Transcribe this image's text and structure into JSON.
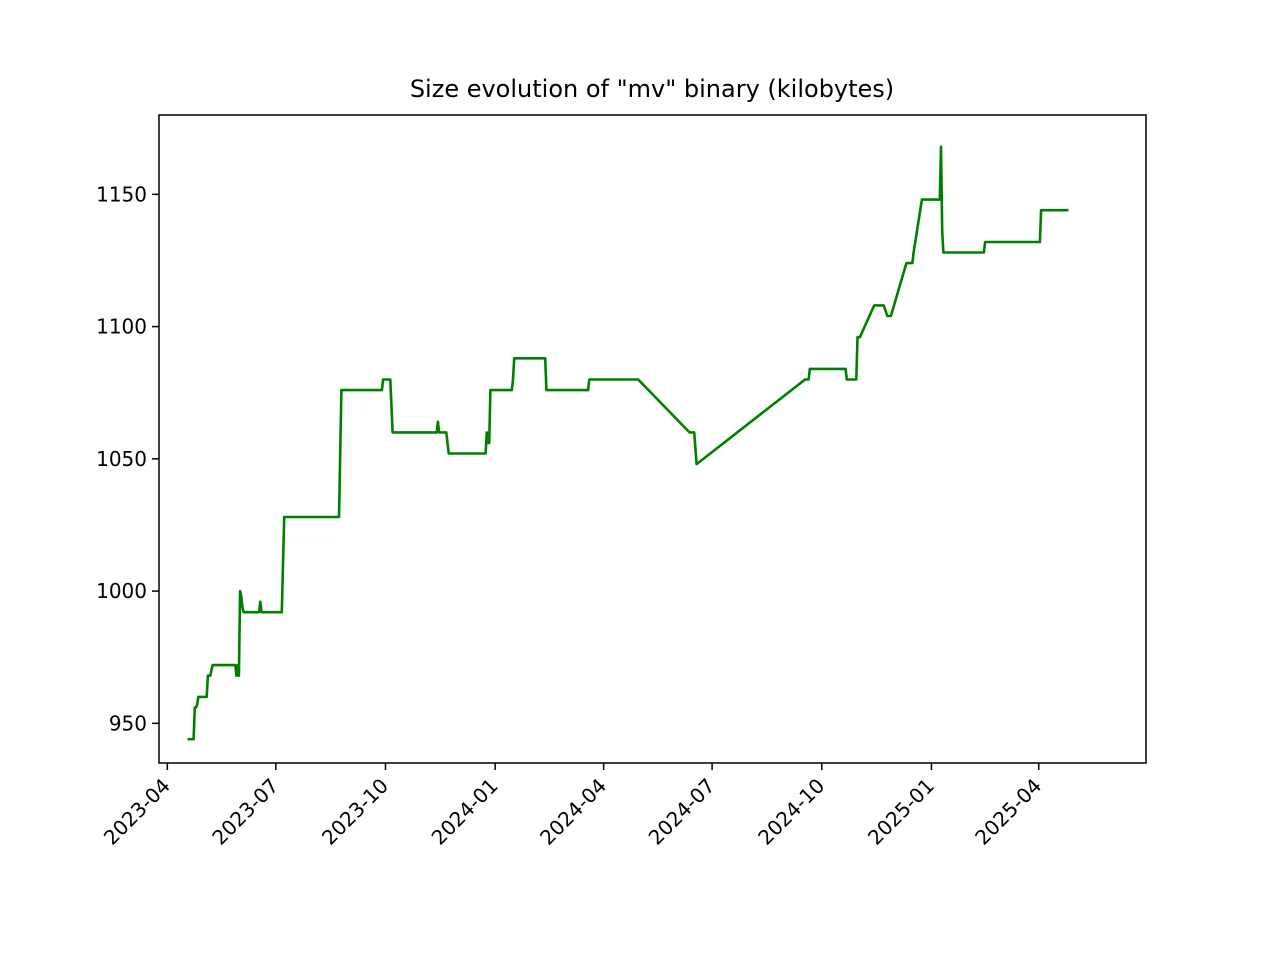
{
  "chart_data": {
    "type": "line",
    "title": "Size evolution of \"mv\" binary (kilobytes)",
    "xlabel": "",
    "ylabel": "",
    "x_axis": "date",
    "xlim": [
      "2023-03-25",
      "2025-06-30"
    ],
    "ylim": [
      935,
      1180
    ],
    "grid": false,
    "legend": "none",
    "line_color": "#008000",
    "xticks": [
      "2023-04-01",
      "2023-07-01",
      "2023-10-01",
      "2024-01-01",
      "2024-04-01",
      "2024-07-01",
      "2024-10-01",
      "2025-01-01",
      "2025-04-01"
    ],
    "xtick_labels": [
      "2023-04",
      "2023-07",
      "2023-10",
      "2024-01",
      "2024-04",
      "2024-07",
      "2024-10",
      "2025-01",
      "2025-04"
    ],
    "yticks": [
      950,
      1000,
      1050,
      1100,
      1150
    ],
    "ytick_labels": [
      "950",
      "1000",
      "1050",
      "1100",
      "1150"
    ],
    "series": [
      {
        "color": "#008000",
        "x": [
          "2023-04-18",
          "2023-04-23",
          "2023-04-24",
          "2023-04-25",
          "2023-04-26",
          "2023-04-27",
          "2023-04-28",
          "2023-05-01",
          "2023-05-04",
          "2023-05-05",
          "2023-05-06",
          "2023-05-07",
          "2023-05-08",
          "2023-05-09",
          "2023-05-10",
          "2023-05-11",
          "2023-05-12",
          "2023-05-28",
          "2023-05-29",
          "2023-05-30",
          "2023-05-31",
          "2023-06-01",
          "2023-06-02",
          "2023-06-03",
          "2023-06-04",
          "2023-06-06",
          "2023-06-17",
          "2023-06-18",
          "2023-06-19",
          "2023-07-06",
          "2023-07-08",
          "2023-08-23",
          "2023-08-25",
          "2023-09-28",
          "2023-09-29",
          "2023-10-05",
          "2023-10-07",
          "2023-11-13",
          "2023-11-14",
          "2023-11-15",
          "2023-11-21",
          "2023-11-23",
          "2023-12-24",
          "2023-12-25",
          "2023-12-26",
          "2023-12-27",
          "2023-12-28",
          "2024-01-15",
          "2024-01-16",
          "2024-01-17",
          "2024-01-18",
          "2024-02-12",
          "2024-02-13",
          "2024-03-19",
          "2024-03-20",
          "2024-04-30",
          "2024-06-12",
          "2024-06-16",
          "2024-06-18",
          "2024-09-17",
          "2024-09-20",
          "2024-09-21",
          "2024-10-21",
          "2024-10-22",
          "2024-10-30",
          "2024-10-31",
          "2024-11-02",
          "2024-11-14",
          "2024-11-22",
          "2024-11-25",
          "2024-11-28",
          "2024-12-11",
          "2024-12-16",
          "2024-12-17",
          "2024-12-24",
          "2025-01-08",
          "2025-01-09",
          "2025-01-10",
          "2025-01-11",
          "2025-01-12",
          "2025-02-14",
          "2025-02-15",
          "2025-04-02",
          "2025-04-03",
          "2025-04-26"
        ],
        "y": [
          944,
          944,
          956,
          956,
          957,
          960,
          960,
          960,
          960,
          968,
          968,
          968,
          970,
          972,
          972,
          972,
          972,
          972,
          968,
          972,
          968,
          1000,
          998,
          994,
          992,
          992,
          992,
          996,
          992,
          992,
          1028,
          1028,
          1076,
          1076,
          1080,
          1080,
          1060,
          1060,
          1064,
          1060,
          1060,
          1052,
          1052,
          1060,
          1056,
          1056,
          1076,
          1076,
          1080,
          1088,
          1088,
          1088,
          1076,
          1076,
          1080,
          1080,
          1060,
          1060,
          1048,
          1080,
          1080,
          1084,
          1084,
          1080,
          1080,
          1096,
          1096,
          1108,
          1108,
          1104,
          1104,
          1124,
          1124,
          1128,
          1148,
          1148,
          1168,
          1136,
          1128,
          1128,
          1128,
          1132,
          1132,
          1144,
          1144
        ]
      }
    ]
  }
}
